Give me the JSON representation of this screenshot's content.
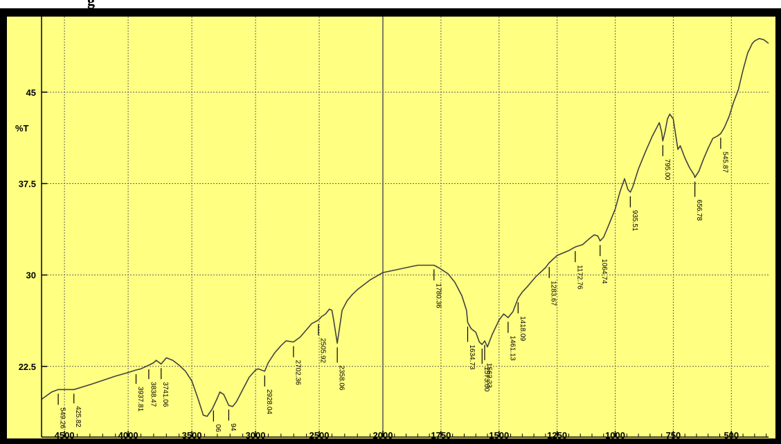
{
  "header_fragment": "g",
  "chart_data": {
    "type": "line",
    "title": "",
    "xlabel": "",
    "ylabel": "%T",
    "xlim": [
      4680,
      340
    ],
    "ylim": [
      16.7,
      51.2
    ],
    "x_ticks": [
      4500,
      4000,
      3500,
      3000,
      2500,
      2000,
      1750,
      1500,
      1250,
      1000,
      750,
      500
    ],
    "y_ticks": [
      22.5,
      30,
      37.5,
      45
    ],
    "y_tick_labels": [
      "22.5",
      "30",
      "37.5",
      "45"
    ],
    "axis_break_x": 2000,
    "grid": true,
    "series": [
      {
        "name": "",
        "x": [
          4680,
          4600,
          4549,
          4426,
          4300,
          4100,
          4000,
          3940,
          3900,
          3838,
          3800,
          3780,
          3741,
          3700,
          3650,
          3600,
          3550,
          3500,
          3450,
          3410,
          3380,
          3340,
          3300,
          3280,
          3250,
          3210,
          3180,
          3150,
          3100,
          3050,
          3000,
          2980,
          2928,
          2900,
          2850,
          2800,
          2760,
          2702,
          2650,
          2600,
          2560,
          2506,
          2480,
          2450,
          2420,
          2400,
          2385,
          2358,
          2340,
          2320,
          2280,
          2240,
          2200,
          2150,
          2100,
          2050,
          2000,
          1950,
          1900,
          1850,
          1800,
          1780,
          1760,
          1720,
          1690,
          1660,
          1640,
          1635,
          1620,
          1600,
          1585,
          1573,
          1562,
          1550,
          1530,
          1500,
          1480,
          1461,
          1440,
          1418,
          1400,
          1380,
          1340,
          1300,
          1284,
          1250,
          1200,
          1172,
          1140,
          1110,
          1090,
          1075,
          1065,
          1050,
          1030,
          1000,
          980,
          960,
          945,
          935,
          925,
          900,
          870,
          840,
          810,
          800,
          795,
          785,
          775,
          765,
          750,
          730,
          720,
          700,
          680,
          660,
          657,
          640,
          620,
          600,
          580,
          560,
          546,
          530,
          510,
          490,
          470,
          450,
          430,
          410,
          400,
          380,
          360,
          340
        ],
        "y": [
          19.8,
          20.4,
          20.6,
          20.6,
          21.0,
          21.7,
          22.0,
          22.2,
          22.3,
          22.6,
          22.8,
          23.0,
          22.7,
          23.2,
          23.0,
          22.6,
          22.1,
          21.3,
          19.8,
          18.5,
          18.4,
          19.0,
          19.9,
          20.4,
          20.2,
          19.3,
          19.2,
          19.6,
          20.6,
          21.6,
          22.2,
          22.3,
          22.1,
          22.8,
          23.6,
          24.2,
          24.6,
          24.5,
          24.9,
          25.5,
          26.0,
          26.3,
          26.6,
          26.8,
          27.2,
          27.1,
          26.2,
          24.4,
          25.7,
          27.1,
          27.9,
          28.4,
          28.8,
          29.2,
          29.6,
          29.9,
          30.2,
          30.4,
          30.6,
          30.8,
          30.8,
          30.8,
          30.6,
          30.1,
          29.4,
          28.3,
          27.1,
          26.1,
          25.6,
          25.3,
          24.5,
          24.3,
          24.6,
          24.1,
          25.1,
          26.3,
          26.8,
          26.5,
          27.0,
          28.1,
          28.6,
          29.0,
          29.9,
          30.6,
          31.0,
          31.6,
          32.0,
          32.3,
          32.5,
          33.0,
          33.3,
          33.2,
          32.8,
          33.1,
          34.0,
          35.4,
          36.8,
          37.9,
          37.0,
          36.8,
          37.2,
          38.7,
          40.1,
          41.4,
          42.5,
          41.7,
          41.0,
          41.8,
          42.8,
          43.2,
          42.8,
          40.3,
          40.6,
          39.6,
          38.8,
          38.2,
          38.0,
          38.5,
          39.5,
          40.4,
          41.2,
          41.4,
          41.6,
          42.1,
          43.0,
          44.2,
          45.2,
          46.8,
          48.2,
          49.0,
          49.2,
          49.4,
          49.3,
          49.0
        ]
      }
    ],
    "peak_labels": [
      {
        "x": 4549,
        "label": "549.26",
        "len": 2
      },
      {
        "x": 4426,
        "label": "425.82",
        "len": 3
      },
      {
        "x": 3938,
        "label": "3937.81",
        "len": 3
      },
      {
        "x": 3838,
        "label": "3838.47",
        "len": 3
      },
      {
        "x": 3741,
        "label": "3741.06",
        "len": 2
      },
      {
        "x": 3330,
        "label": "06",
        "len": 2
      },
      {
        "x": 3210,
        "label": "94",
        "len": 2
      },
      {
        "x": 2928,
        "label": "2928.04",
        "len": 2
      },
      {
        "x": 2702,
        "label": "2702.36",
        "len": 2
      },
      {
        "x": 2506,
        "label": "2505.92",
        "len": 2
      },
      {
        "x": 2358,
        "label": "2358.06",
        "len": 1
      },
      {
        "x": 1780,
        "label": "1780.36",
        "len": 2
      },
      {
        "x": 1635,
        "label": "1634.73",
        "len": 1
      },
      {
        "x": 1573,
        "label": "1573.00",
        "len": 1
      },
      {
        "x": 1562,
        "label": "1562.33",
        "len": 1
      },
      {
        "x": 1461,
        "label": "1461.13",
        "len": 2
      },
      {
        "x": 1418,
        "label": "1418.09",
        "len": 2
      },
      {
        "x": 1284,
        "label": "1283.67",
        "len": 2
      },
      {
        "x": 1172,
        "label": "1172.76",
        "len": 2
      },
      {
        "x": 1065,
        "label": "1064.74",
        "len": 2
      },
      {
        "x": 935,
        "label": "935.51",
        "len": 2
      },
      {
        "x": 795,
        "label": "795.00",
        "len": 2
      },
      {
        "x": 657,
        "label": "656.78",
        "len": 1
      },
      {
        "x": 546,
        "label": "545.87",
        "len": 2
      }
    ],
    "colors": {
      "background": "#ffff82",
      "frame": "#000000",
      "grid": "#606060",
      "line": "#404040"
    }
  }
}
